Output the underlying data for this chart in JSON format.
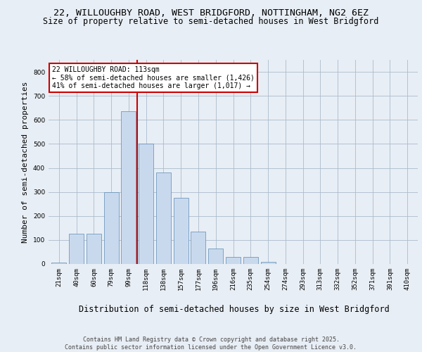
{
  "title1": "22, WILLOUGHBY ROAD, WEST BRIDGFORD, NOTTINGHAM, NG2 6EZ",
  "title2": "Size of property relative to semi-detached houses in West Bridgford",
  "xlabel": "Distribution of semi-detached houses by size in West Bridgford",
  "ylabel": "Number of semi-detached properties",
  "categories": [
    "21sqm",
    "40sqm",
    "60sqm",
    "79sqm",
    "99sqm",
    "118sqm",
    "138sqm",
    "157sqm",
    "177sqm",
    "196sqm",
    "216sqm",
    "235sqm",
    "254sqm",
    "274sqm",
    "293sqm",
    "313sqm",
    "332sqm",
    "352sqm",
    "371sqm",
    "391sqm",
    "410sqm"
  ],
  "values": [
    5,
    125,
    125,
    300,
    635,
    500,
    380,
    275,
    135,
    65,
    30,
    30,
    10,
    0,
    0,
    0,
    0,
    0,
    0,
    0,
    0
  ],
  "bar_color": "#c9d9ed",
  "bar_edge_color": "#5a8ab5",
  "annotation_text": "22 WILLOUGHBY ROAD: 113sqm\n← 58% of semi-detached houses are smaller (1,426)\n41% of semi-detached houses are larger (1,017) →",
  "annotation_box_color": "#ffffff",
  "annotation_box_edge": "#cc0000",
  "vline_color": "#cc0000",
  "ylim": [
    0,
    850
  ],
  "yticks": [
    0,
    100,
    200,
    300,
    400,
    500,
    600,
    700,
    800
  ],
  "bg_color": "#e8eef5",
  "plot_bg_color": "#e8eef5",
  "footer_text": "Contains HM Land Registry data © Crown copyright and database right 2025.\nContains public sector information licensed under the Open Government Licence v3.0.",
  "title1_fontsize": 9.5,
  "title2_fontsize": 8.5,
  "xlabel_fontsize": 8.5,
  "ylabel_fontsize": 8,
  "tick_fontsize": 6.5,
  "annot_fontsize": 7,
  "footer_fontsize": 6
}
